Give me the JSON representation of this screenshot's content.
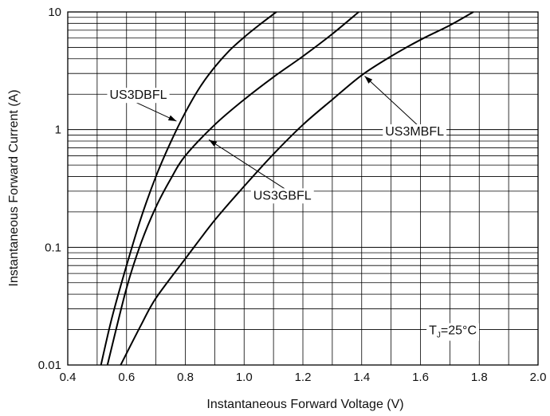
{
  "chart_data": {
    "type": "line",
    "x_axis": {
      "label": "Instantaneous Forward Voltage (V)",
      "range": [
        0.4,
        2.0
      ],
      "ticks": [
        "0.4",
        "0.6",
        "0.8",
        "1.0",
        "1.2",
        "1.4",
        "1.6",
        "1.8",
        "2.0"
      ],
      "minor_step": 0.1
    },
    "y_axis": {
      "label": "Instantaneous Forward Current (A)",
      "scale": "log",
      "range": [
        0.01,
        10
      ],
      "ticks": [
        "0.01",
        "0.1",
        "1",
        "10"
      ]
    },
    "grid": true,
    "series": [
      {
        "name": "US3DBFL",
        "points": [
          [
            0.513,
            0.01
          ],
          [
            0.55,
            0.025
          ],
          [
            0.6,
            0.07
          ],
          [
            0.65,
            0.18
          ],
          [
            0.7,
            0.4
          ],
          [
            0.75,
            0.78
          ],
          [
            0.8,
            1.4
          ],
          [
            0.85,
            2.3
          ],
          [
            0.9,
            3.4
          ],
          [
            0.95,
            4.7
          ],
          [
            1.0,
            6.1
          ],
          [
            1.05,
            7.7
          ],
          [
            1.11,
            10.0
          ]
        ]
      },
      {
        "name": "US3GBFL",
        "points": [
          [
            0.535,
            0.01
          ],
          [
            0.6,
            0.045
          ],
          [
            0.65,
            0.11
          ],
          [
            0.7,
            0.22
          ],
          [
            0.75,
            0.38
          ],
          [
            0.8,
            0.6
          ],
          [
            0.9,
            1.1
          ],
          [
            1.0,
            1.8
          ],
          [
            1.1,
            2.8
          ],
          [
            1.2,
            4.2
          ],
          [
            1.3,
            6.5
          ],
          [
            1.39,
            10.0
          ]
        ]
      },
      {
        "name": "US3MBFL",
        "points": [
          [
            0.58,
            0.01
          ],
          [
            0.65,
            0.022
          ],
          [
            0.7,
            0.037
          ],
          [
            0.8,
            0.08
          ],
          [
            0.9,
            0.17
          ],
          [
            1.0,
            0.33
          ],
          [
            1.1,
            0.62
          ],
          [
            1.2,
            1.1
          ],
          [
            1.3,
            1.8
          ],
          [
            1.4,
            2.9
          ],
          [
            1.5,
            4.2
          ],
          [
            1.6,
            5.8
          ],
          [
            1.7,
            7.7
          ],
          [
            1.78,
            10.0
          ]
        ]
      }
    ],
    "annotations": [
      {
        "text": "US3DBFL",
        "label_at": [
          0.64,
          2.0
        ],
        "arrow_to": [
          0.77,
          1.18
        ]
      },
      {
        "text": "US3GBFL",
        "label_at": [
          1.13,
          0.28
        ],
        "arrow_to": [
          0.88,
          0.82
        ]
      },
      {
        "text": "US3MBFL",
        "label_at": [
          1.58,
          0.98
        ],
        "arrow_to": [
          1.41,
          2.85
        ]
      }
    ],
    "condition": {
      "text": "T",
      "subscript": "J",
      "suffix": "=25°C",
      "at": [
        1.71,
        0.02
      ]
    }
  }
}
